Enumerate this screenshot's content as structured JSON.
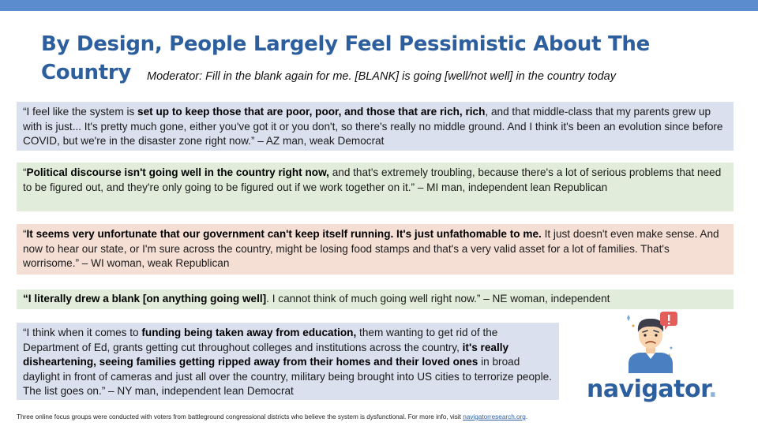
{
  "title": "By Design, People Largely Feel Pessimistic About The Country",
  "subtitle": "Moderator: Fill in the blank again for me. [BLANK] is going [well/not well] in the country today",
  "quotes": [
    {
      "parts": [
        {
          "text": "“I feel like the system is ",
          "bold": false
        },
        {
          "text": "set up to keep those that are poor, poor, and those that are rich, rich",
          "bold": true
        },
        {
          "text": ", and that middle-class that my parents grew up with is just... It's pretty much gone, either you've got it or you don't, so there's really no middle ground. And I think it's been an evolution since before COVID, but we're in the disaster zone right now.” – AZ man, weak Democrat",
          "bold": false
        }
      ]
    },
    {
      "parts": [
        {
          "text": "“",
          "bold": false
        },
        {
          "text": "Political discourse isn't going well in the country right now,",
          "bold": true
        },
        {
          "text": " and that's extremely troubling, because there's a lot of serious problems that need to be figured out, and they're only going to be figured out if we work together on it.” – MI man, independent lean Republican",
          "bold": false
        }
      ]
    },
    {
      "parts": [
        {
          "text": "“",
          "bold": false
        },
        {
          "text": "It seems very unfortunate that our government can't keep itself running. It's just unfathomable to me.",
          "bold": true
        },
        {
          "text": " It just doesn't even make sense. And now to hear our state, or I'm sure across the country, might be losing food stamps and that's a very valid asset for a lot of families. That's worrisome.” – WI woman, weak Republican",
          "bold": false
        }
      ]
    },
    {
      "parts": [
        {
          "text": "“I literally drew a blank [on anything going well]",
          "bold": true
        },
        {
          "text": ". I cannot think of much going well right now.” – NE woman, independent",
          "bold": false
        }
      ]
    },
    {
      "parts": [
        {
          "text": "“I think when it comes to ",
          "bold": false
        },
        {
          "text": "funding being taken away from education,",
          "bold": true
        },
        {
          "text": " them wanting to get rid of the Department of Ed, grants getting cut throughout colleges and institutions across the country, ",
          "bold": false
        },
        {
          "text": "it's really disheartening, seeing families getting ripped away from their homes and their loved ones",
          "bold": true
        },
        {
          "text": " in broad daylight in front of cameras and just all over the country, military being brought into US cities to terrorize people. The list goes on.” – NY man, independent lean Democrat",
          "bold": false
        }
      ]
    }
  ],
  "logo": {
    "text": "navigator",
    "dot": "."
  },
  "footer": {
    "text": "Three online focus groups were conducted with voters from battleground congressional districts who believe the system is dysfunctional. For more info, visit ",
    "link": "navigatorresearch.org",
    "end": "."
  },
  "colors": {
    "accent": "#2d5f9e",
    "topbar": "#5b8ccd",
    "blue_box": "#dbe0ef",
    "green_box": "#e1ecda",
    "peach_box": "#f5dfd4"
  }
}
